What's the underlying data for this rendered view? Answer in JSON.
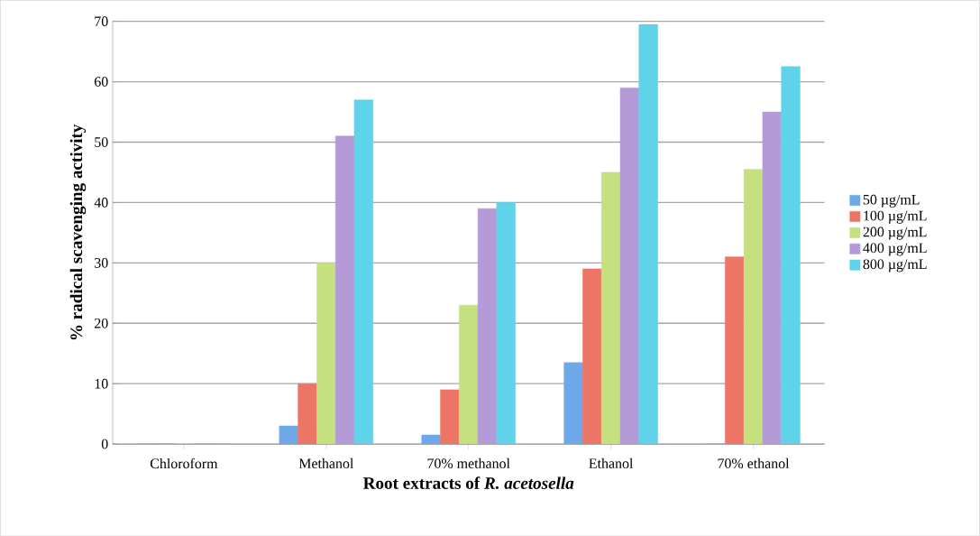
{
  "chart_data": {
    "type": "bar",
    "xlabel": "Root extracts of *R. acetosella*",
    "ylabel": "% radical scavenging activity",
    "categories": [
      "Chloroform",
      "Methanol",
      "70% methanol",
      "Ethanol",
      "70% ethanol"
    ],
    "series": [
      {
        "name": "50 µg/mL",
        "color": "#6fa8e8",
        "values": [
          0,
          3,
          1.5,
          13.5,
          0
        ]
      },
      {
        "name": "100 µg/mL",
        "color": "#ec7565",
        "values": [
          0,
          10,
          9,
          29,
          31
        ]
      },
      {
        "name": "200 µg/mL",
        "color": "#c5e07f",
        "values": [
          0,
          30,
          23,
          45,
          45.5
        ]
      },
      {
        "name": "400 µg/mL",
        "color": "#b59ad8",
        "values": [
          0,
          51,
          39,
          59,
          55
        ]
      },
      {
        "name": "800 µg/mL",
        "color": "#5ed3ea",
        "values": [
          0,
          57,
          40,
          69.5,
          62.5
        ]
      }
    ],
    "ylim": [
      0,
      70
    ],
    "yticks": [
      0,
      10,
      20,
      30,
      40,
      50,
      60,
      70
    ],
    "grid": "y",
    "legend": "right"
  }
}
